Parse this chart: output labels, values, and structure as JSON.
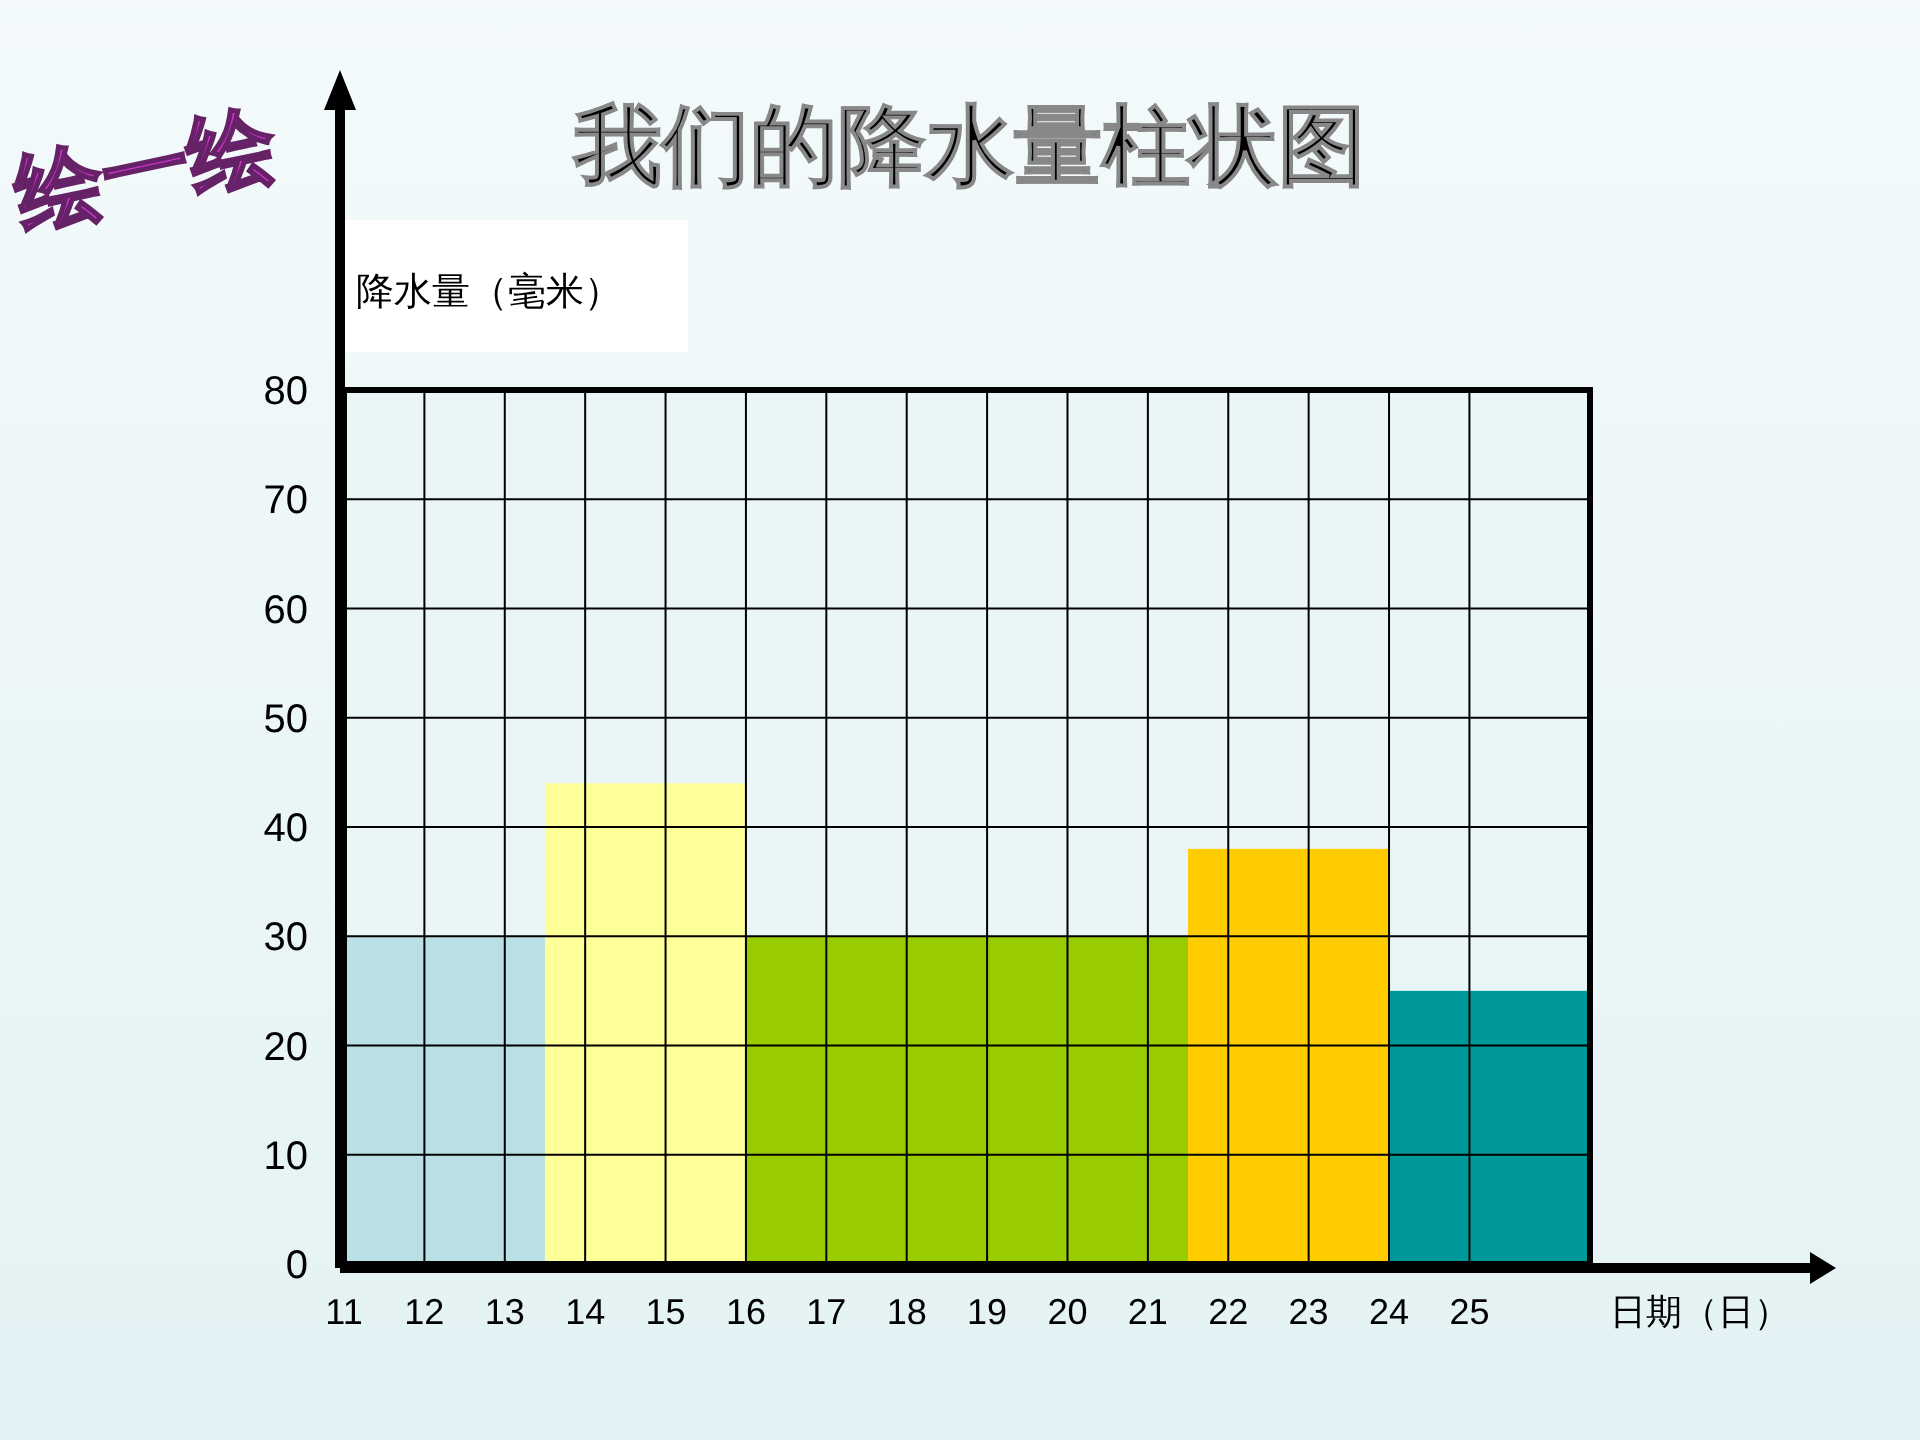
{
  "chart_data": {
    "type": "histogram",
    "title": "我们的降水量柱状图",
    "xlabel": "日期（日）",
    "ylabel": "降水量（毫米）",
    "annotations": [
      "绘一绘"
    ],
    "bins": [
      11,
      13.5,
      16,
      21.5,
      24,
      26.5
    ],
    "values": [
      30,
      44,
      30,
      38,
      25
    ],
    "colors": [
      "#b9e0e4",
      "#ffff99",
      "#99cc00",
      "#ffcc00",
      "#009999"
    ],
    "xlim": [
      11,
      26.5
    ],
    "xticks": [
      11,
      12,
      13,
      14,
      15,
      16,
      17,
      18,
      19,
      20,
      21,
      22,
      23,
      24,
      25
    ],
    "ylim": [
      0,
      80
    ],
    "yticks": [
      0,
      10,
      20,
      30,
      40,
      50,
      60,
      70,
      80
    ],
    "grid": true
  }
}
